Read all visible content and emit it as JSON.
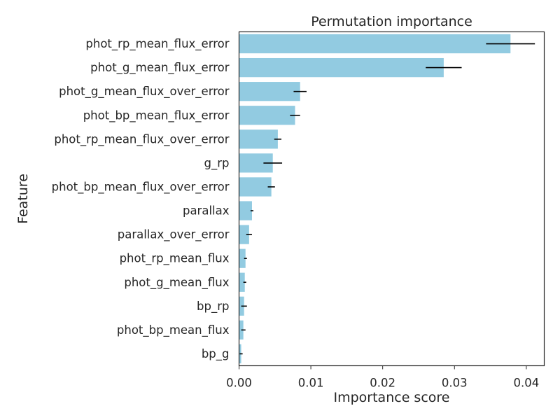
{
  "chart_data": {
    "type": "bar",
    "orientation": "horizontal",
    "title": "Permutation importance",
    "xlabel": "Importance score",
    "ylabel": "Feature",
    "xlim": [
      0,
      0.0425
    ],
    "xticks": [
      0.0,
      0.01,
      0.02,
      0.03,
      0.04
    ],
    "xtick_labels": [
      "0.00",
      "0.01",
      "0.02",
      "0.03",
      "0.04"
    ],
    "grid": false,
    "legend": "none",
    "bar_color": "#92cbe1",
    "errorbar_color": "#000000",
    "categories": [
      "phot_rp_mean_flux_error",
      "phot_g_mean_flux_error",
      "phot_g_mean_flux_over_error",
      "phot_bp_mean_flux_error",
      "phot_rp_mean_flux_over_error",
      "g_rp",
      "phot_bp_mean_flux_over_error",
      "parallax",
      "parallax_over_error",
      "phot_rp_mean_flux",
      "phot_g_mean_flux",
      "bp_rp",
      "phot_bp_mean_flux",
      "bp_g"
    ],
    "values": [
      0.0378,
      0.0285,
      0.0085,
      0.0078,
      0.0054,
      0.0047,
      0.0045,
      0.0018,
      0.0014,
      0.0009,
      0.0008,
      0.0007,
      0.0006,
      0.0003
    ],
    "errors": [
      0.0034,
      0.0025,
      0.0009,
      0.0007,
      0.0005,
      0.0013,
      0.0005,
      0.0002,
      0.0004,
      0.0002,
      0.0002,
      0.0004,
      0.0003,
      0.0002
    ]
  }
}
